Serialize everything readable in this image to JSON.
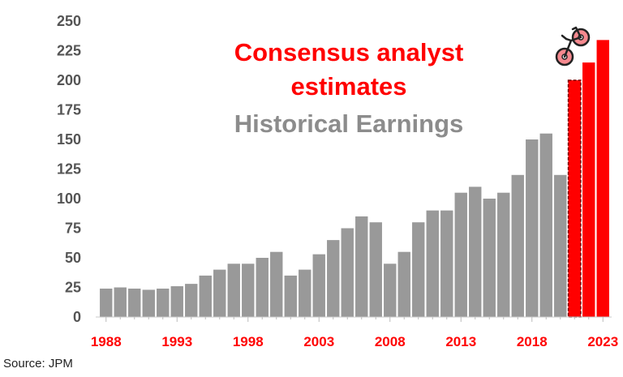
{
  "chart_data": {
    "type": "bar",
    "title": "",
    "xlabel": "",
    "ylabel": "",
    "ylim": [
      0,
      250
    ],
    "yticks": [
      0,
      25,
      50,
      75,
      100,
      125,
      150,
      175,
      200,
      225,
      250
    ],
    "xtick_labels": [
      "1988",
      "1993",
      "1998",
      "2003",
      "2008",
      "2013",
      "2018",
      "2023"
    ],
    "legend": {
      "estimates_label": "Consensus analyst estimates",
      "historical_label": "Historical Earnings"
    },
    "series": [
      {
        "name": "Historical Earnings",
        "color": "#999999",
        "x": [
          1988,
          1989,
          1990,
          1991,
          1992,
          1993,
          1994,
          1995,
          1996,
          1997,
          1998,
          1999,
          2000,
          2001,
          2002,
          2003,
          2004,
          2005,
          2006,
          2007,
          2008,
          2009,
          2010,
          2011,
          2012,
          2013,
          2014,
          2015,
          2016,
          2017,
          2018,
          2019,
          2020
        ],
        "values": [
          24,
          25,
          24,
          23,
          24,
          26,
          28,
          35,
          40,
          45,
          45,
          50,
          55,
          35,
          40,
          53,
          65,
          75,
          85,
          80,
          45,
          55,
          80,
          90,
          90,
          105,
          110,
          100,
          105,
          120,
          150,
          155,
          120
        ]
      },
      {
        "name": "Consensus analyst estimates",
        "color": "#ff0000",
        "x": [
          2021,
          2022,
          2023
        ],
        "values": [
          200,
          215,
          234
        ]
      }
    ],
    "icon": "bicycle-icon"
  },
  "source": "Source: JPM"
}
